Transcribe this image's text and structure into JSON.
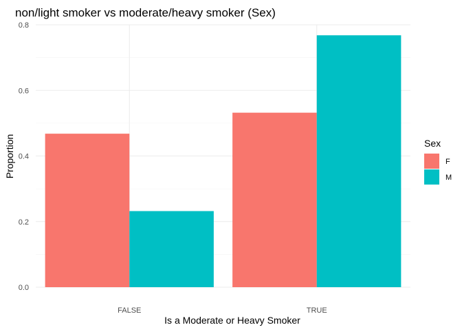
{
  "chart_data": {
    "type": "bar",
    "title": "non/light smoker vs moderate/heavy smoker (Sex)",
    "xlabel": "Is a Moderate or Heavy Smoker",
    "ylabel": "Proportion",
    "categories": [
      "FALSE",
      "TRUE"
    ],
    "series": [
      {
        "name": "F",
        "values": [
          0.468,
          0.532
        ],
        "color": "#F8766D"
      },
      {
        "name": "M",
        "values": [
          0.232,
          0.768
        ],
        "color": "#00BFC4"
      }
    ],
    "ylim": [
      0,
      0.8
    ],
    "yticks": [
      "0.0",
      "0.2",
      "0.4",
      "0.6",
      "0.8"
    ],
    "grid": true,
    "legend": {
      "title": "Sex",
      "placement": "right"
    }
  }
}
